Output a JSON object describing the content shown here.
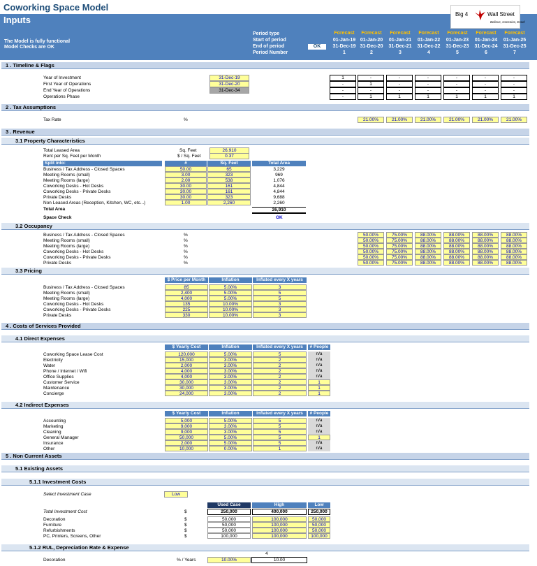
{
  "header": {
    "title": "Coworking Space Model",
    "subtitle": "Inputs",
    "status1": "The Model is fully functional",
    "status2": "Model Checks are OK",
    "ok": "OK",
    "row_labels": [
      "Period type",
      "Start of period",
      "End of period",
      "Period Number"
    ],
    "periods": [
      {
        "type": "Forecast",
        "start": "01-Jan-19",
        "end": "31-Dec-19",
        "num": "1"
      },
      {
        "type": "Forecast",
        "start": "01-Jan-20",
        "end": "31-Dec-20",
        "num": "2"
      },
      {
        "type": "Forecast",
        "start": "01-Jan-21",
        "end": "31-Dec-21",
        "num": "3"
      },
      {
        "type": "Forecast",
        "start": "01-Jan-22",
        "end": "31-Dec-22",
        "num": "4"
      },
      {
        "type": "Forecast",
        "start": "01-Jan-23",
        "end": "31-Dec-23",
        "num": "5"
      },
      {
        "type": "Forecast",
        "start": "01-Jan-24",
        "end": "31-Dec-24",
        "num": "6"
      },
      {
        "type": "Forecast",
        "start": "01-Jan-25",
        "end": "31-Dec-25",
        "num": "7"
      }
    ],
    "logo_text1": "Big 4",
    "logo_text2": "Wall Street",
    "logo_tag": "Believe, Conceive, Excel"
  },
  "s1": {
    "title": "1 .  Timeline & Flags",
    "rows": [
      {
        "label": "Year of Investment",
        "value": "31-Dec-19",
        "cells": [
          "1",
          "-",
          "-",
          "-",
          "-",
          "-",
          "-"
        ]
      },
      {
        "label": "First Year of Operations",
        "value": "31-Dec-20",
        "cells": [
          "-",
          "1",
          "-",
          "-",
          "-",
          "-",
          "-"
        ]
      },
      {
        "label": "End Year of Operations",
        "value": "31-Dec-34",
        "cells": [
          "-",
          "-",
          "-",
          "-",
          "-",
          "-",
          "-"
        ]
      },
      {
        "label": "Operations Phase",
        "value": "",
        "cells": [
          "-",
          "1",
          "1",
          "1",
          "1",
          "1",
          "1"
        ]
      }
    ]
  },
  "s2": {
    "title": "2 .  Tax Assumptions",
    "label": "Tax Rate",
    "unit": "%",
    "cells": [
      "21.00%",
      "21.00%",
      "21.00%",
      "21.00%",
      "21.00%",
      "21.00%"
    ]
  },
  "s3": {
    "title": "3 .  Revenue",
    "s31": {
      "title": "3.1   Property Characteristics",
      "total_leased": {
        "label": "Total Leased Area",
        "unit": "Sq. Feet",
        "value": "26,910"
      },
      "rent": {
        "label": "Rent per Sq. Feet per Month",
        "unit": "$ / Sq. Feet",
        "value": "0.37"
      },
      "cols": [
        "Split into:",
        "#",
        "Sq. Feet",
        "Total Area"
      ],
      "rows": [
        [
          "Business / Tax Address - Closed Spaces",
          "50.00",
          "65",
          "3,229"
        ],
        [
          "Meeting Rooms (small)",
          "3.00",
          "323",
          "969"
        ],
        [
          "Meeting Rooms (large)",
          "2.00",
          "538",
          "1,076"
        ],
        [
          "Coworking Desks - Hot Desks",
          "30.00",
          "161",
          "4,844"
        ],
        [
          "Coworking Desks - Private Desks",
          "30.00",
          "161",
          "4,844"
        ],
        [
          "Private Desks",
          "30.00",
          "323",
          "9,688"
        ],
        [
          "Non Leased Areas (Reception, Kitchen, WC, etc...)",
          "1.00",
          "2,260",
          "2,260"
        ]
      ],
      "total_label": "Total Area",
      "total_value": "26,910",
      "check_label": "Space Check",
      "check_value": "OK"
    },
    "s32": {
      "title": "3.2   Occupancy",
      "rows": [
        {
          "label": "Business / Tax Address - Closed Spaces",
          "unit": "%",
          "cells": [
            "50.00%",
            "75.00%",
            "88.00%",
            "88.00%",
            "88.00%",
            "88.00%"
          ]
        },
        {
          "label": "Meeting Rooms (small)",
          "unit": "%",
          "cells": [
            "50.00%",
            "75.00%",
            "88.00%",
            "88.00%",
            "88.00%",
            "88.00%"
          ]
        },
        {
          "label": "Meeting Rooms (large)",
          "unit": "%",
          "cells": [
            "50.00%",
            "75.00%",
            "88.00%",
            "88.00%",
            "88.00%",
            "88.00%"
          ]
        },
        {
          "label": "Coworking Desks - Hot Desks",
          "unit": "%",
          "cells": [
            "50.00%",
            "75.00%",
            "88.00%",
            "88.00%",
            "88.00%",
            "88.00%"
          ]
        },
        {
          "label": "Coworking Desks - Private Desks",
          "unit": "%",
          "cells": [
            "50.00%",
            "75.00%",
            "88.00%",
            "88.00%",
            "88.00%",
            "88.00%"
          ]
        },
        {
          "label": "Private Desks",
          "unit": "%",
          "cells": [
            "50.00%",
            "75.00%",
            "88.00%",
            "88.00%",
            "88.00%",
            "88.00%"
          ]
        }
      ]
    },
    "s33": {
      "title": "3.3   Pricing",
      "cols": [
        "$ Price per Month",
        "Inflation",
        "Inflated every X years"
      ],
      "rows": [
        [
          "Business / Tax Address - Closed Spaces",
          "85",
          "5.00%",
          "3"
        ],
        [
          "Meeting Rooms (small)",
          "2,400",
          "5.00%",
          "5"
        ],
        [
          "Meeting Rooms (large)",
          "4,000",
          "5.00%",
          "5"
        ],
        [
          "Coworking Desks - Hot Desks",
          "135",
          "10.00%",
          "3"
        ],
        [
          "Coworking Desks - Private Desks",
          "225",
          "10.00%",
          "3"
        ],
        [
          "Private Desks",
          "330",
          "10.00%",
          "3"
        ]
      ]
    }
  },
  "s4": {
    "title": "4 .  Costs of Services Provided",
    "s41": {
      "title": "4.1   Direct Expenses",
      "cols": [
        "$ Yearly Cost",
        "Inflation",
        "Inflated every X years",
        "# People"
      ],
      "rows": [
        [
          "Coworking Space Lease Cost",
          "120,000",
          "5.00%",
          "5",
          "n/a"
        ],
        [
          "Electricity",
          "15,000",
          "3.00%",
          "2",
          "n/a"
        ],
        [
          "Water",
          "2,000",
          "3.00%",
          "2",
          "n/a"
        ],
        [
          "Phone / Internet / Wifi",
          "4,000",
          "3.00%",
          "2",
          "n/a"
        ],
        [
          "Office Supplies",
          "4,000",
          "3.00%",
          "2",
          "n/a"
        ],
        [
          "Customer Service",
          "30,000",
          "3.00%",
          "2",
          "1"
        ],
        [
          "Maintenance",
          "30,000",
          "3.00%",
          "2",
          "1"
        ],
        [
          "Concierge",
          "24,000",
          "3.00%",
          "2",
          "1"
        ]
      ]
    },
    "s42": {
      "title": "4.2   Indirect Expenses",
      "cols": [
        "$ Yearly Cost",
        "Inflation",
        "Inflated every X years",
        "# People"
      ],
      "rows": [
        [
          "Accounting",
          "5,000",
          "5.00%",
          "5",
          "n/a"
        ],
        [
          "Marketing",
          "9,000",
          "3.00%",
          "5",
          "n/a"
        ],
        [
          "Cleaning",
          "9,000",
          "3.00%",
          "5",
          "n/a"
        ],
        [
          "General Manager",
          "50,000",
          "5.00%",
          "5",
          "1"
        ],
        [
          "Insurance",
          "2,000",
          "5.00%",
          "5",
          "n/a"
        ],
        [
          "Other",
          "10,000",
          "0.00%",
          "1",
          "n/a"
        ]
      ]
    }
  },
  "s5": {
    "title": "5 .  Non Current Assets",
    "s51": {
      "title": "5.1   Existing Assets"
    },
    "s511": {
      "title": "5.1.1  Investment Costs",
      "case_label": "Select Investment Case",
      "case_value": "Low",
      "cols": [
        "Used Case",
        "High",
        "Low"
      ],
      "total_label": "Total Investment Cost",
      "total_unit": "$",
      "total": [
        "250,000",
        "400,000",
        "250,000"
      ],
      "rows": [
        [
          "Decoration",
          "$",
          "50,000",
          "100,000",
          "50,000"
        ],
        [
          "Furniture",
          "$",
          "50,000",
          "100,000",
          "50,000"
        ],
        [
          "Refurbishments",
          "$",
          "50,000",
          "100,000",
          "50,000"
        ],
        [
          "PC, Printers, Screens, Other",
          "$",
          "100,000",
          "100,000",
          "100,000"
        ]
      ]
    },
    "s512": {
      "title": "5.1.2  RUL, Depreciation Rate & Expense",
      "top_num": "4",
      "row": {
        "label": "Decoration",
        "unit": "% / Years",
        "v1": "10.00%",
        "v2": "10.00"
      }
    }
  }
}
